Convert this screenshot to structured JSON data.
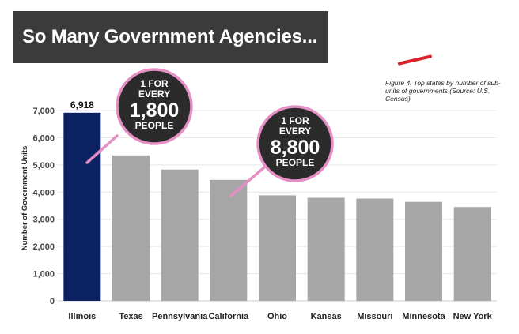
{
  "header": {
    "title": "So Many Government Agencies..."
  },
  "caption": "Figure 4. Top states by number of sub-units of governments (Source: U.S. Census)",
  "callouts": [
    {
      "line1": "1 FOR",
      "line2": "EVERY",
      "number": "1,800",
      "line4": "PEOPLE"
    },
    {
      "line1": "1 FOR",
      "line2": "EVERY",
      "number": "8,800",
      "line4": "PEOPLE"
    }
  ],
  "colors": {
    "highlight_bar": "#0d2263",
    "bar": "#a6a6a6",
    "bubble_fill": "#2b2b2b",
    "bubble_ring": "#e58fc4",
    "banner": "#3b3b3b",
    "accent": "#d8232a"
  },
  "chart_data": {
    "type": "bar",
    "categories": [
      "Illinois",
      "Texas",
      "Pennsylvania",
      "California",
      "Ohio",
      "Kansas",
      "Missouri",
      "Minnesota",
      "New York"
    ],
    "values": [
      6918,
      5350,
      4830,
      4450,
      3880,
      3790,
      3760,
      3640,
      3450
    ],
    "data_labels": [
      "6,918",
      "",
      "",
      "",
      "",
      "",
      "",
      "",
      ""
    ],
    "highlight_index": 0,
    "ylabel": "Number of Government Units",
    "ylim": [
      0,
      7000
    ],
    "yticks": [
      0,
      1000,
      2000,
      3000,
      4000,
      5000,
      6000,
      7000
    ],
    "ytick_labels": [
      "0",
      "1,000",
      "2,000",
      "3,000",
      "4,000",
      "5,000",
      "6,000",
      "7,000"
    ],
    "grid": true
  }
}
